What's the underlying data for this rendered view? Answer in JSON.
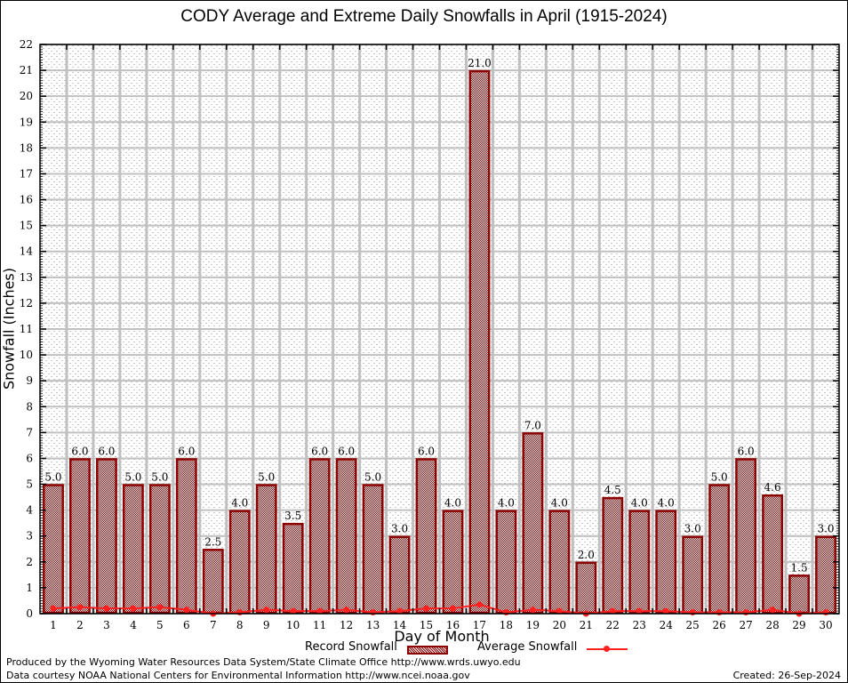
{
  "footer": {
    "credit_line1": "Produced by the Wyoming Water Resources Data System/State Climate Office http://www.wrds.uwyo.edu",
    "credit_line2": "Data courtesy NOAA National Centers for Environmental Information http://www.ncei.noaa.gov",
    "created": "Created: 26-Sep-2024"
  },
  "colors": {
    "record_bar": "#8b0000",
    "average_line": "#ff2020",
    "grid": "#c0c0c0"
  },
  "chart_data": {
    "type": "bar",
    "title": "CODY Average and Extreme Daily Snowfalls in April (1915-2024)",
    "xlabel": "Day of Month",
    "ylabel": "Snowfall (Inches)",
    "ylim": [
      0,
      22
    ],
    "yticks": [
      "0",
      "1",
      "2",
      "3",
      "4",
      "5",
      "6",
      "7",
      "8",
      "9",
      "10",
      "11",
      "12",
      "13",
      "14",
      "15",
      "16",
      "17",
      "18",
      "19",
      "20",
      "21",
      "22"
    ],
    "grid": true,
    "legend": {
      "position": "bottom",
      "entries": [
        "Record Snowfall",
        "Average Snowfall"
      ]
    },
    "categories": [
      "1",
      "2",
      "3",
      "4",
      "5",
      "6",
      "7",
      "8",
      "9",
      "10",
      "11",
      "12",
      "13",
      "14",
      "15",
      "16",
      "17",
      "18",
      "19",
      "20",
      "21",
      "22",
      "23",
      "24",
      "25",
      "26",
      "27",
      "28",
      "29",
      "30"
    ],
    "series": [
      {
        "name": "Record Snowfall",
        "type": "bar",
        "values": [
          5.0,
          6.0,
          6.0,
          5.0,
          5.0,
          6.0,
          2.5,
          4.0,
          5.0,
          3.5,
          6.0,
          6.0,
          5.0,
          3.0,
          6.0,
          4.0,
          21.0,
          4.0,
          7.0,
          4.0,
          2.0,
          4.5,
          4.0,
          4.0,
          3.0,
          5.0,
          6.0,
          4.6,
          1.5,
          3.0
        ],
        "labels": [
          "5.0",
          "6.0",
          "6.0",
          "5.0",
          "5.0",
          "6.0",
          "2.5",
          "4.0",
          "5.0",
          "3.5",
          "6.0",
          "6.0",
          "5.0",
          "3.0",
          "6.0",
          "4.0",
          "21.0",
          "4.0",
          "7.0",
          "4.0",
          "2.0",
          "4.5",
          "4.0",
          "4.0",
          "3.0",
          "5.0",
          "6.0",
          "4.6",
          "1.5",
          "3.0"
        ]
      },
      {
        "name": "Average Snowfall",
        "type": "line",
        "values": [
          0.2,
          0.25,
          0.2,
          0.2,
          0.25,
          0.15,
          0.0,
          0.05,
          0.15,
          0.1,
          0.1,
          0.15,
          0.05,
          0.1,
          0.2,
          0.2,
          0.35,
          0.05,
          0.15,
          0.1,
          0.0,
          0.1,
          0.1,
          0.1,
          0.05,
          0.05,
          0.05,
          0.15,
          0.0,
          0.05
        ]
      }
    ]
  }
}
